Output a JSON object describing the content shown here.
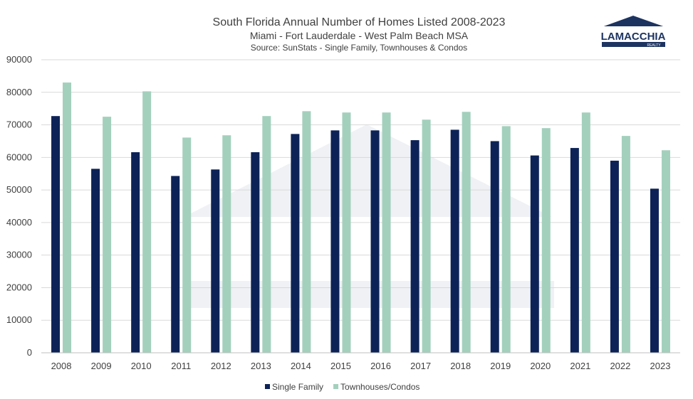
{
  "chart_data": {
    "type": "bar",
    "title": "South Florida Annual Number of Homes Listed 2008-2023",
    "subtitle": "Miami - Fort Lauderdale - West Palm Beach MSA",
    "source": "Source: SunStats - Single Family, Townhouses & Condos",
    "categories": [
      "2008",
      "2009",
      "2010",
      "2011",
      "2012",
      "2013",
      "2014",
      "2015",
      "2016",
      "2017",
      "2018",
      "2019",
      "2020",
      "2021",
      "2022",
      "2023"
    ],
    "series": [
      {
        "name": "Single Family",
        "color": "#0d2357",
        "values": [
          72700,
          56500,
          61600,
          54300,
          56300,
          61600,
          67200,
          68300,
          68300,
          65300,
          68500,
          65000,
          60600,
          62900,
          59000,
          50400
        ]
      },
      {
        "name": "Townhouses/Condos",
        "color": "#a3d0bd",
        "values": [
          83000,
          72500,
          80300,
          66100,
          66800,
          72700,
          74200,
          73800,
          73800,
          71600,
          74000,
          69600,
          69000,
          73800,
          66600,
          62200
        ]
      }
    ],
    "ylim": [
      0,
      90000
    ],
    "yticks": [
      0,
      10000,
      20000,
      30000,
      40000,
      50000,
      60000,
      70000,
      80000,
      90000
    ],
    "grid": true,
    "legend_position": "bottom"
  },
  "logo": {
    "name": "LAMACCHIA",
    "sub": "REALTY",
    "color": "#1d3461"
  }
}
